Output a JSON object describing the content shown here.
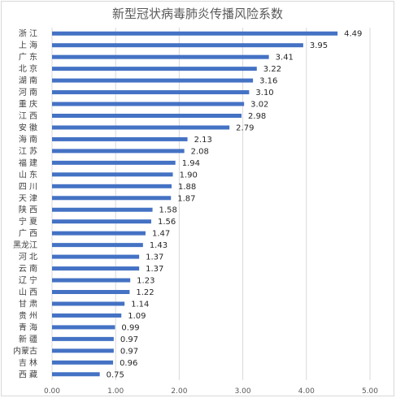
{
  "chart_data": {
    "type": "bar",
    "orientation": "horizontal",
    "title": "新型冠状病毒肺炎传播风险系数",
    "categories": [
      "浙 江",
      "上 海",
      "广 东",
      "北 京",
      "湖 南",
      "河 南",
      "重 庆",
      "江 西",
      "安 徽",
      "海 南",
      "江 苏",
      "福 建",
      "山 东",
      "四 川",
      "天 津",
      "陕 西",
      "宁 夏",
      "广 西",
      "黑龙江",
      "河 北",
      "云 南",
      "辽 宁",
      "山 西",
      "甘 肃",
      "贵 州",
      "青 海",
      "新 疆",
      "内蒙古",
      "吉 林",
      "西 藏"
    ],
    "values": [
      4.49,
      3.95,
      3.41,
      3.22,
      3.16,
      3.1,
      3.02,
      2.98,
      2.79,
      2.13,
      2.08,
      1.94,
      1.9,
      1.88,
      1.87,
      1.58,
      1.56,
      1.47,
      1.43,
      1.37,
      1.37,
      1.23,
      1.22,
      1.14,
      1.09,
      0.99,
      0.97,
      0.97,
      0.96,
      0.75
    ],
    "value_labels": [
      "4.49",
      "3.95",
      "3.41",
      "3.22",
      "3.16",
      "3.10",
      "3.02",
      "2.98",
      "2.79",
      "2.13",
      "2.08",
      "1.94",
      "1.90",
      "1.88",
      "1.87",
      "1.58",
      "1.56",
      "1.47",
      "1.43",
      "1.37",
      "1.37",
      "1.23",
      "1.22",
      "1.14",
      "1.09",
      "0.99",
      "0.97",
      "0.97",
      "0.96",
      "0.75"
    ],
    "xlim": [
      0,
      5
    ],
    "xticks": [
      "0.00",
      "1.00",
      "2.00",
      "3.00",
      "4.00",
      "5.00"
    ],
    "grid": true,
    "bar_color": "#4472c4"
  }
}
